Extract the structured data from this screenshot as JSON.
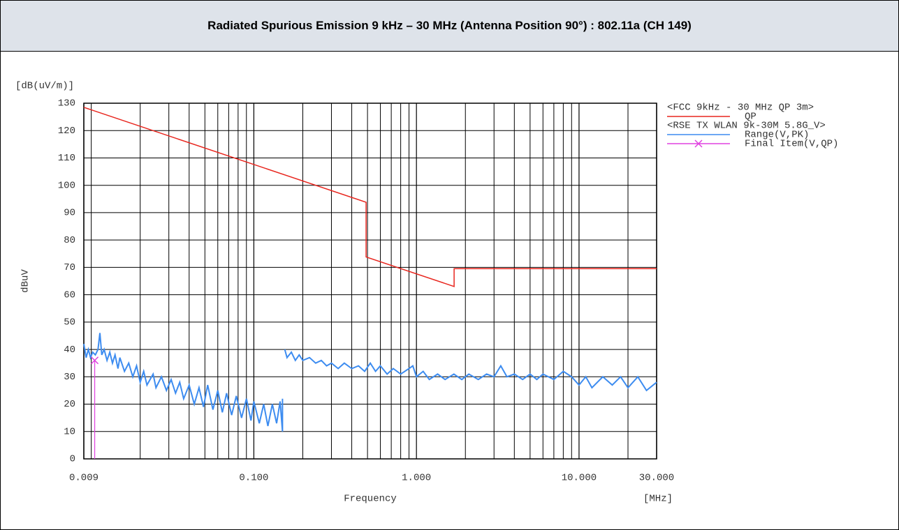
{
  "header": {
    "title": "Radiated Spurious Emission 9 kHz – 30 MHz (Antenna Position 90°) : 802.11a (CH 149)"
  },
  "chart_data": {
    "type": "line",
    "unit_label": "[dB(uV/m)]",
    "y_label": "dBuV",
    "x_label": "Frequency",
    "x_unit_label": "[MHz]",
    "x_log": true,
    "grid": true,
    "xlim": [
      0.009,
      30
    ],
    "xticks": [
      0.009,
      {
        "value": 0.1,
        "label": "0.100"
      },
      {
        "value": 1,
        "label": "1.000"
      },
      {
        "value": 10,
        "label": "10.000"
      },
      {
        "value": 30,
        "label": "30.000"
      }
    ],
    "xminor": [
      0.01,
      0.02,
      0.03,
      0.04,
      0.05,
      0.06,
      0.07,
      0.08,
      0.09,
      0.2,
      0.3,
      0.4,
      0.5,
      0.6,
      0.7,
      0.8,
      0.9,
      2,
      3,
      4,
      5,
      6,
      7,
      8,
      9,
      20
    ],
    "ylim": [
      0,
      130
    ],
    "yticks": [
      0,
      10,
      20,
      30,
      40,
      50,
      60,
      70,
      80,
      90,
      100,
      110,
      120,
      130
    ],
    "legend_headers": [
      "<FCC 9kHz - 30 MHz QP 3m>",
      "<RSE TX WLAN 9k-30M 5.8G_V>"
    ],
    "series": [
      {
        "name": "QP",
        "color": "#e8261e",
        "x": [
          0.009,
          0.49,
          0.49,
          1.705,
          1.705,
          30
        ],
        "values": [
          128.5,
          93.8,
          73.8,
          63,
          69.5,
          69.5
        ]
      },
      {
        "name": "Range(V,PK)",
        "color": "#3d8cf0",
        "x": [
          0.009,
          0.0093,
          0.0096,
          0.0099,
          0.0102,
          0.0106,
          0.011,
          0.0113,
          0.0116,
          0.012,
          0.0125,
          0.013,
          0.0135,
          0.014,
          0.0146,
          0.015,
          0.016,
          0.017,
          0.018,
          0.019,
          0.02,
          0.021,
          0.022,
          0.024,
          0.025,
          0.027,
          0.029,
          0.031,
          0.033,
          0.035,
          0.037,
          0.04,
          0.043,
          0.046,
          0.049,
          0.052,
          0.056,
          0.06,
          0.064,
          0.068,
          0.073,
          0.078,
          0.084,
          0.09,
          0.096,
          0.1,
          0.108,
          0.115,
          0.122,
          0.13,
          0.138,
          0.145,
          0.15,
          0.15,
          null,
          0.155,
          0.16,
          0.17,
          0.18,
          0.19,
          0.2,
          0.22,
          0.24,
          0.26,
          0.28,
          0.3,
          0.33,
          0.36,
          0.4,
          0.44,
          0.48,
          0.52,
          0.56,
          0.6,
          0.66,
          0.72,
          0.8,
          0.9,
          0.95,
          1.0,
          1.1,
          1.2,
          1.35,
          1.5,
          1.7,
          1.9,
          2.1,
          2.4,
          2.7,
          3.0,
          3.3,
          3.6,
          4,
          4.5,
          5,
          5.5,
          6,
          7,
          8,
          9,
          10,
          11,
          12,
          14,
          16,
          18,
          20,
          23,
          26,
          30
        ],
        "values": [
          42,
          37,
          40,
          37,
          39,
          38,
          40,
          46,
          38,
          40,
          36,
          39,
          35,
          38,
          33,
          37,
          32,
          35,
          30,
          34,
          28,
          32,
          27,
          31,
          26,
          30,
          25,
          29,
          24,
          28,
          22,
          27,
          20,
          26,
          19,
          27,
          18,
          25,
          17,
          24,
          16,
          23,
          15,
          22,
          14,
          21,
          13,
          20,
          12,
          20,
          13,
          21,
          10,
          22,
          null,
          40,
          37,
          39,
          36,
          38,
          36,
          37,
          35,
          36,
          34,
          35,
          33,
          35,
          33,
          34,
          32,
          35,
          32,
          34,
          31,
          33,
          31,
          33,
          34,
          30,
          32,
          29,
          31,
          29,
          31,
          29,
          31,
          29,
          31,
          30,
          34,
          30,
          31,
          29,
          31,
          29,
          31,
          29,
          32,
          30,
          27,
          30,
          26,
          30,
          27,
          30,
          26,
          30,
          25,
          28
        ]
      },
      {
        "name": "Final Item(V,QP)",
        "color": "#e040e0",
        "x": [
          0.0105
        ],
        "values": [
          36
        ]
      }
    ]
  }
}
